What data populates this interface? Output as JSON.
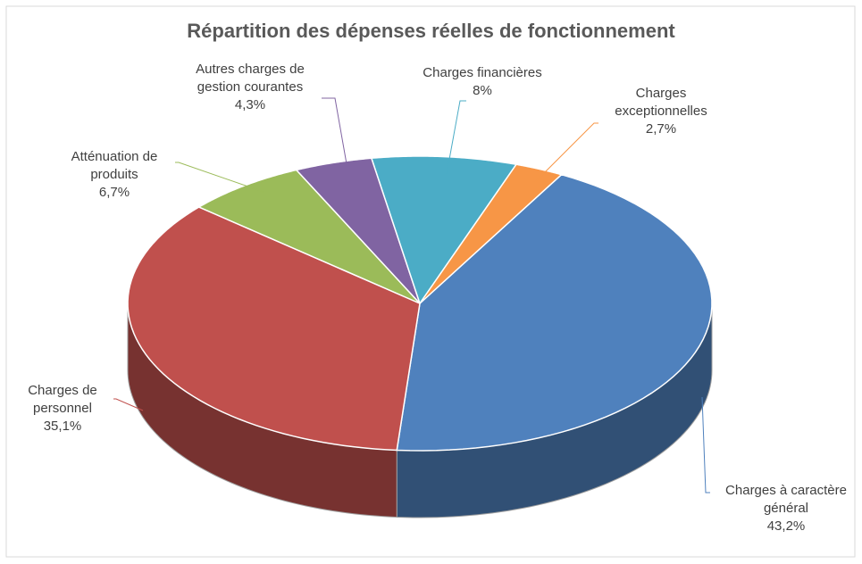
{
  "chart_data": {
    "type": "pie3d",
    "title": "Répartition des dépenses réelles de fonctionnement",
    "categories": [
      "Charges à caractère général",
      "Charges de personnel",
      "Atténuation de produits",
      "Autres charges de gestion courantes",
      "Charges financières",
      "Charges exceptionnelles"
    ],
    "values": [
      43.2,
      35.1,
      6.7,
      4.3,
      8,
      2.7
    ],
    "value_labels": [
      "43,2%",
      "35,1%",
      "6,7%",
      "4,3%",
      "8%",
      "2,7%"
    ],
    "colors": [
      "#4f81bd",
      "#c0504d",
      "#9bbb59",
      "#8064a2",
      "#4bacc6",
      "#f79646"
    ]
  }
}
